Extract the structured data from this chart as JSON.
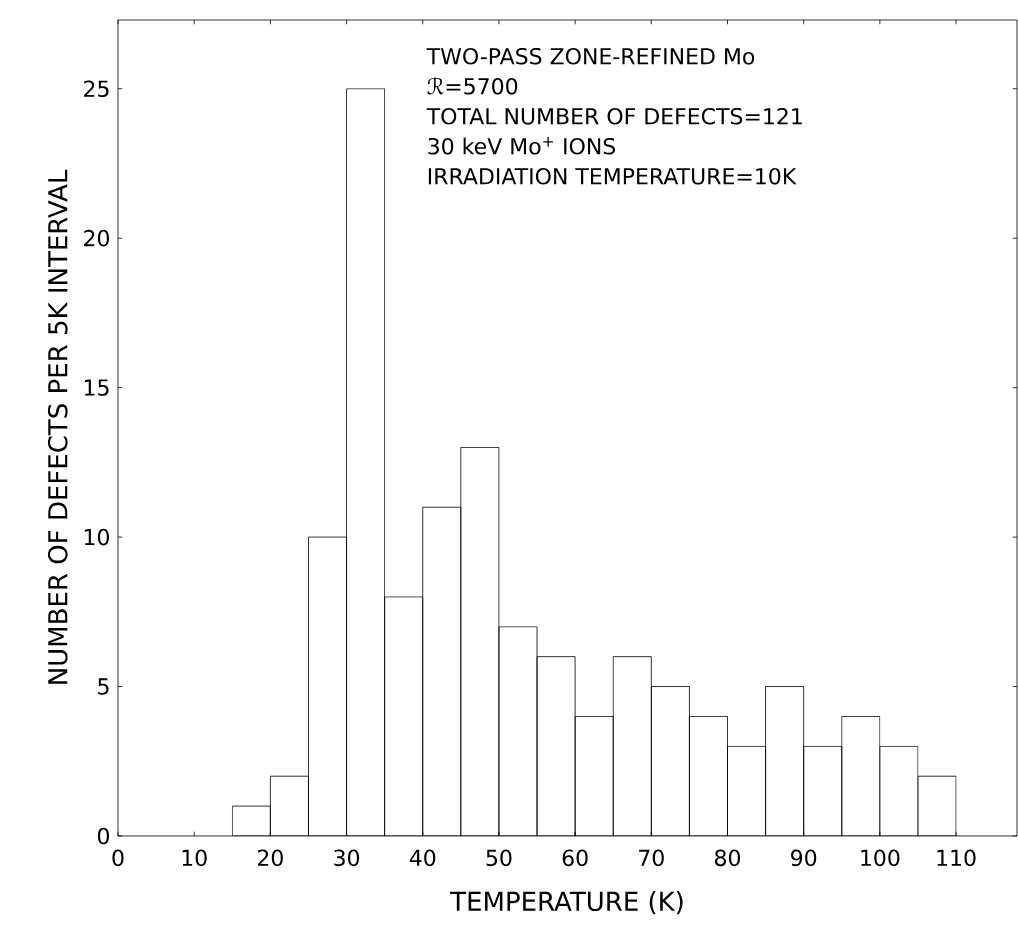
{
  "chart_data": {
    "type": "histogram",
    "xlabel": "TEMPERATURE (K)",
    "ylabel": "NUMBER OF DEFECTS PER 5K INTERVAL",
    "bins": [
      15,
      20,
      25,
      30,
      35,
      40,
      45,
      50,
      55,
      60,
      65,
      70,
      75,
      80,
      85,
      90,
      95,
      100,
      105,
      110
    ],
    "values": [
      1,
      2,
      10,
      25,
      8,
      11,
      13,
      7,
      6,
      4,
      6,
      5,
      4,
      3,
      5,
      3,
      4,
      3,
      2
    ],
    "color": "#000000",
    "xlim": [
      0,
      118
    ],
    "ylim": [
      0,
      27.3
    ],
    "xticks": [
      0,
      10,
      20,
      30,
      40,
      50,
      60,
      70,
      80,
      90,
      100,
      110
    ],
    "yticks": [
      0,
      5,
      10,
      15,
      20,
      25
    ],
    "grid": false,
    "annotations": [
      "TWO-PASS ZONE-REFINED Mo",
      "ℛ=5700",
      "TOTAL NUMBER OF DEFECTS=121",
      "30 keV Mo$^{+}$ IONS",
      "IRRADIATION TEMPERATURE=10K"
    ]
  }
}
